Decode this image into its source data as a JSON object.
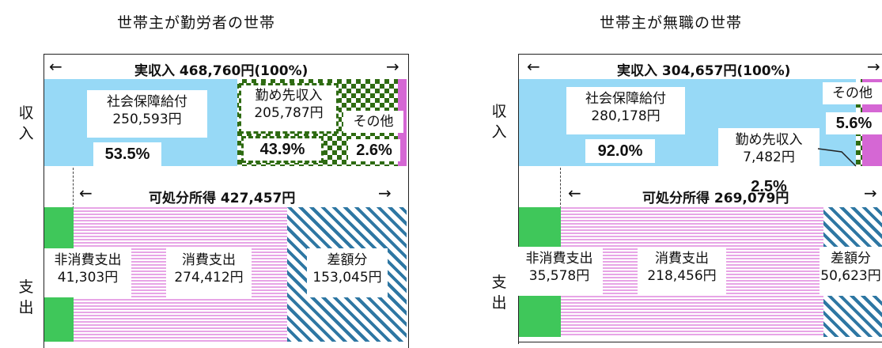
{
  "left": {
    "title": "世帯主が勤労者の世帯",
    "side_income": "収入",
    "side_expense": "支出",
    "income_header": "実収入 468,760円(100%)",
    "disposable_header": "可処分所得 427,457円",
    "arrow_left": "←",
    "arrow_right": "→",
    "social": {
      "label": "社会保障給付",
      "amount": "250,593円",
      "pct": "53.5%"
    },
    "work": {
      "label": "勤め先収入",
      "amount": "205,787円",
      "pct": "43.9%"
    },
    "other": {
      "label": "その他",
      "pct": "2.6%"
    },
    "nonconsumption": {
      "label": "非消費支出",
      "amount": "41,303円"
    },
    "consumption": {
      "label": "消費支出",
      "amount": "274,412円"
    },
    "surplus": {
      "label": "差額分",
      "amount": "153,045円"
    }
  },
  "right": {
    "title": "世帯主が無職の世帯",
    "side_income": "収入",
    "side_expense": "支出",
    "income_header": "実収入 304,657円(100%)",
    "disposable_header": "可処分所得 269,079円",
    "arrow_left": "←",
    "arrow_right": "→",
    "social": {
      "label": "社会保障給付",
      "amount": "280,178円",
      "pct": "92.0%"
    },
    "work": {
      "label": "勤め先収入",
      "amount": "7,482円",
      "pct": "2.5%"
    },
    "other": {
      "label": "その他",
      "pct": "5.6%"
    },
    "nonconsumption": {
      "label": "非消費支出",
      "amount": "35,578円"
    },
    "consumption": {
      "label": "消費支出",
      "amount": "218,456円"
    },
    "surplus": {
      "label": "差額分",
      "amount": "50,623円"
    }
  },
  "colors": {
    "social": "#97d9f6",
    "work_pattern": "#2e6b12",
    "other": "#d567d4",
    "nonconsumption": "#3fc75a",
    "consumption": "#e7a5e6",
    "surplus": "#2e77a3"
  }
}
